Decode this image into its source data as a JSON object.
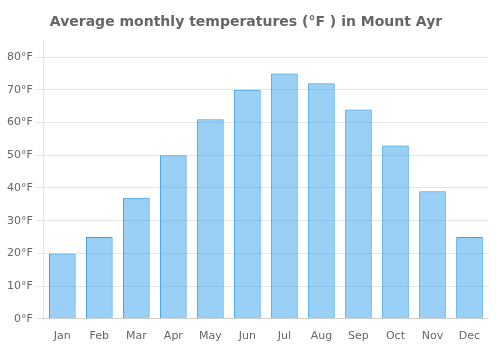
{
  "chart_data": {
    "type": "bar",
    "title": "Average monthly temperatures (°F ) in Mount Ayr",
    "categories": [
      "Jan",
      "Feb",
      "Mar",
      "Apr",
      "May",
      "Jun",
      "Jul",
      "Aug",
      "Sep",
      "Oct",
      "Nov",
      "Dec"
    ],
    "values": [
      20,
      25,
      37,
      50,
      61,
      70,
      75,
      72,
      64,
      53,
      39,
      25
    ],
    "ylim": [
      0,
      85
    ],
    "yticks": [
      {
        "value": 0,
        "label": "0°F"
      },
      {
        "value": 10,
        "label": "10°F"
      },
      {
        "value": 20,
        "label": "20°F"
      },
      {
        "value": 30,
        "label": "30°F"
      },
      {
        "value": 40,
        "label": "40°F"
      },
      {
        "value": 50,
        "label": "50°F"
      },
      {
        "value": 60,
        "label": "60°F"
      },
      {
        "value": 70,
        "label": "70°F"
      },
      {
        "value": 80,
        "label": "80°F"
      }
    ],
    "grid": true
  }
}
